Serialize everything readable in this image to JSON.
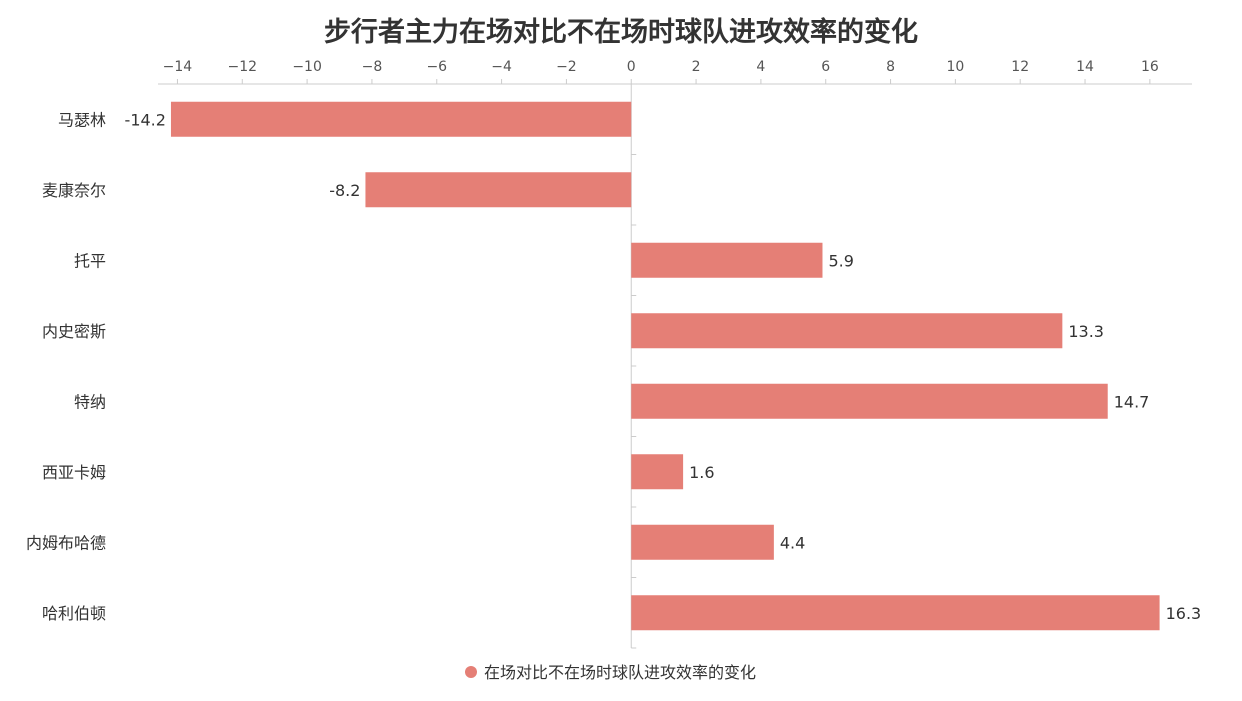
{
  "chart_data": {
    "type": "bar",
    "orientation": "horizontal",
    "title": "步行者主力在场对比不在场时球队进攻效率的变化",
    "categories": [
      "马瑟林",
      "麦康奈尔",
      "托平",
      "内史密斯",
      "特纳",
      "西亚卡姆",
      "内姆布哈德",
      "哈利伯顿"
    ],
    "series": [
      {
        "name": "在场对比不在场时球队进攻效率的变化",
        "values": [
          -14.2,
          -8.2,
          5.9,
          13.3,
          14.7,
          1.6,
          4.4,
          16.3
        ],
        "labels": [
          "-14.2",
          "-8.2",
          "5.9",
          "13.3",
          "14.7",
          "1.6",
          "4.4",
          "16.3"
        ],
        "color": "#e57f76"
      }
    ],
    "x_axis": {
      "min": -14.6,
      "max": 17.3,
      "ticks": [
        -14,
        -12,
        -10,
        -8,
        -6,
        -4,
        -2,
        0,
        2,
        4,
        6,
        8,
        10,
        12,
        14,
        16
      ],
      "tick_labels": [
        "−14",
        "−12",
        "−10",
        "−8",
        "−6",
        "−4",
        "−2",
        "0",
        "2",
        "4",
        "6",
        "8",
        "10",
        "12",
        "14",
        "16"
      ],
      "position": "top"
    },
    "grid": false,
    "legend_position": "bottom",
    "colors": {
      "bar": "#e57f76",
      "axis": "#cccccc",
      "text": "#333333"
    }
  }
}
